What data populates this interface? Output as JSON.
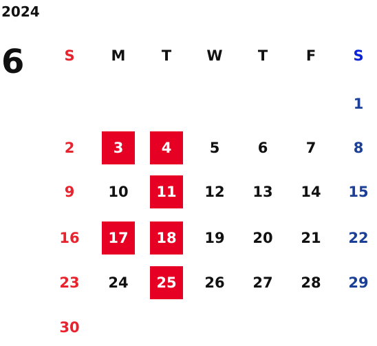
{
  "calendar": {
    "year": "2024",
    "month": "6",
    "weekday_headers": [
      "S",
      "M",
      "T",
      "W",
      "T",
      "F",
      "S"
    ],
    "weeks": [
      [
        "",
        "",
        "",
        "",
        "",
        "",
        "1"
      ],
      [
        "2",
        "3",
        "4",
        "5",
        "6",
        "7",
        "8"
      ],
      [
        "9",
        "10",
        "11",
        "12",
        "13",
        "14",
        "15"
      ],
      [
        "16",
        "17",
        "18",
        "19",
        "20",
        "21",
        "22"
      ],
      [
        "23",
        "24",
        "25",
        "26",
        "27",
        "28",
        "29"
      ],
      [
        "30",
        "",
        "",
        "",
        "",
        "",
        ""
      ]
    ],
    "highlighted_days": [
      "3",
      "4",
      "11",
      "17",
      "18",
      "25"
    ]
  },
  "colors": {
    "sunday": "#e8232e",
    "saturday": "#1b3f97",
    "saturday_header": "#0a23d8",
    "weekday": "#111111",
    "highlight_bg": "#e60023",
    "highlight_text": "#ffffff"
  }
}
